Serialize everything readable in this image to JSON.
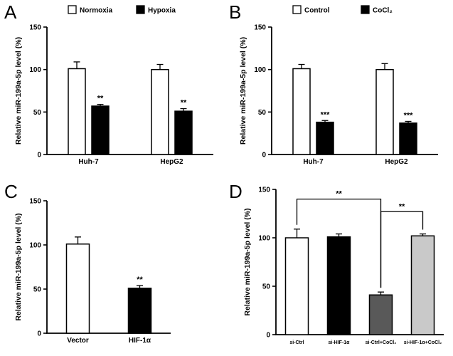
{
  "figure": {
    "ylabel": "Relative miR-199a-5p level (%)"
  },
  "chart_data": [
    {
      "panel": "A",
      "type": "bar",
      "categories": [
        "Huh-7",
        "HepG2"
      ],
      "series": [
        {
          "name": "Normoxia",
          "color": "#ffffff",
          "values": [
            101,
            100
          ],
          "errors": [
            8,
            6
          ]
        },
        {
          "name": "Hypoxia",
          "color": "#000000",
          "values": [
            57,
            51
          ],
          "errors": [
            2,
            3
          ]
        }
      ],
      "significance": [
        {
          "series": 1,
          "category": 0,
          "label": "**"
        },
        {
          "series": 1,
          "category": 1,
          "label": "**"
        }
      ],
      "ylabel": "Relative miR-199a-5p level (%)",
      "ylim": [
        0,
        150
      ],
      "yticks": [
        0,
        50,
        100,
        150
      ],
      "legend_position": "top",
      "grid": false
    },
    {
      "panel": "B",
      "type": "bar",
      "categories": [
        "Huh-7",
        "HepG2"
      ],
      "series": [
        {
          "name": "Control",
          "color": "#ffffff",
          "values": [
            101,
            100
          ],
          "errors": [
            5,
            7
          ]
        },
        {
          "name": "CoCl₂",
          "color": "#000000",
          "values": [
            38,
            37
          ],
          "errors": [
            2,
            2
          ]
        }
      ],
      "significance": [
        {
          "series": 1,
          "category": 0,
          "label": "***"
        },
        {
          "series": 1,
          "category": 1,
          "label": "***"
        }
      ],
      "ylabel": "Relative miR-199a-5p level (%)",
      "ylim": [
        0,
        150
      ],
      "yticks": [
        0,
        50,
        100,
        150
      ],
      "legend_position": "top",
      "grid": false
    },
    {
      "panel": "C",
      "type": "bar",
      "categories": [
        "Vector",
        "HIF-1α"
      ],
      "values": [
        101,
        51
      ],
      "errors": [
        8,
        3
      ],
      "colors": [
        "#ffffff",
        "#000000"
      ],
      "significance": [
        {
          "category": 1,
          "label": "**"
        }
      ],
      "ylabel": "Relative miR-199a-5p level (%)",
      "ylim": [
        0,
        150
      ],
      "yticks": [
        0,
        50,
        100,
        150
      ],
      "legend_position": "none",
      "grid": false
    },
    {
      "panel": "D",
      "type": "bar",
      "categories": [
        "si-Ctrl",
        "si-HIF-1α",
        "si-Ctrl+CoCl₂",
        "si-HIF-1α+CoCl₂"
      ],
      "values": [
        100,
        101,
        41,
        102
      ],
      "errors": [
        9,
        3,
        3,
        2
      ],
      "colors": [
        "#ffffff",
        "#000000",
        "#595959",
        "#c9c9c9"
      ],
      "brackets": [
        {
          "from": 0,
          "to": 2,
          "label": "**",
          "level": 140
        },
        {
          "from": 2,
          "to": 3,
          "label": "**",
          "level": 127
        }
      ],
      "ylabel": "Relative miR-199a-5p level (%)",
      "ylim": [
        0,
        150
      ],
      "yticks": [
        0,
        50,
        100,
        150
      ],
      "legend_position": "none",
      "grid": false
    }
  ]
}
